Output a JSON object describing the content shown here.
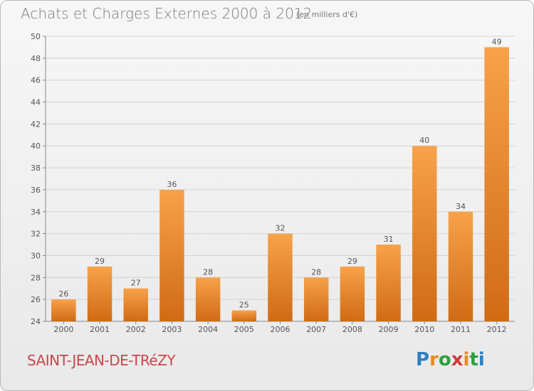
{
  "title": "Achats et Charges Externes 2000 à 2012",
  "subtitle": "(en milliers d'€)",
  "commune": "SAINT-JEAN-DE-TRéZY",
  "logo": {
    "letters": [
      "P",
      "r",
      "o",
      "x",
      "i",
      "t",
      "i"
    ],
    "colors": [
      "#2f7fc1",
      "#e58a1f",
      "#2f9e3f",
      "#d23a3a",
      "#e58a1f",
      "#2f9e3f",
      "#2f7fc1"
    ]
  },
  "colors": {
    "bar_light": "#f7a24a",
    "bar_dark": "#d06b14",
    "text": "#555555",
    "grid": "#d2d2d2"
  },
  "chart_data": {
    "type": "bar",
    "categories": [
      "2000",
      "2001",
      "2002",
      "2003",
      "2004",
      "2005",
      "2006",
      "2007",
      "2008",
      "2009",
      "2010",
      "2011",
      "2012"
    ],
    "values": [
      26,
      29,
      27,
      36,
      28,
      25,
      32,
      28,
      29,
      31,
      40,
      34,
      49
    ],
    "yticks": [
      24,
      26,
      28,
      30,
      32,
      34,
      36,
      38,
      40,
      42,
      44,
      46,
      48,
      50
    ],
    "ylim": [
      24,
      50
    ],
    "grid": true,
    "data_labels": true
  }
}
